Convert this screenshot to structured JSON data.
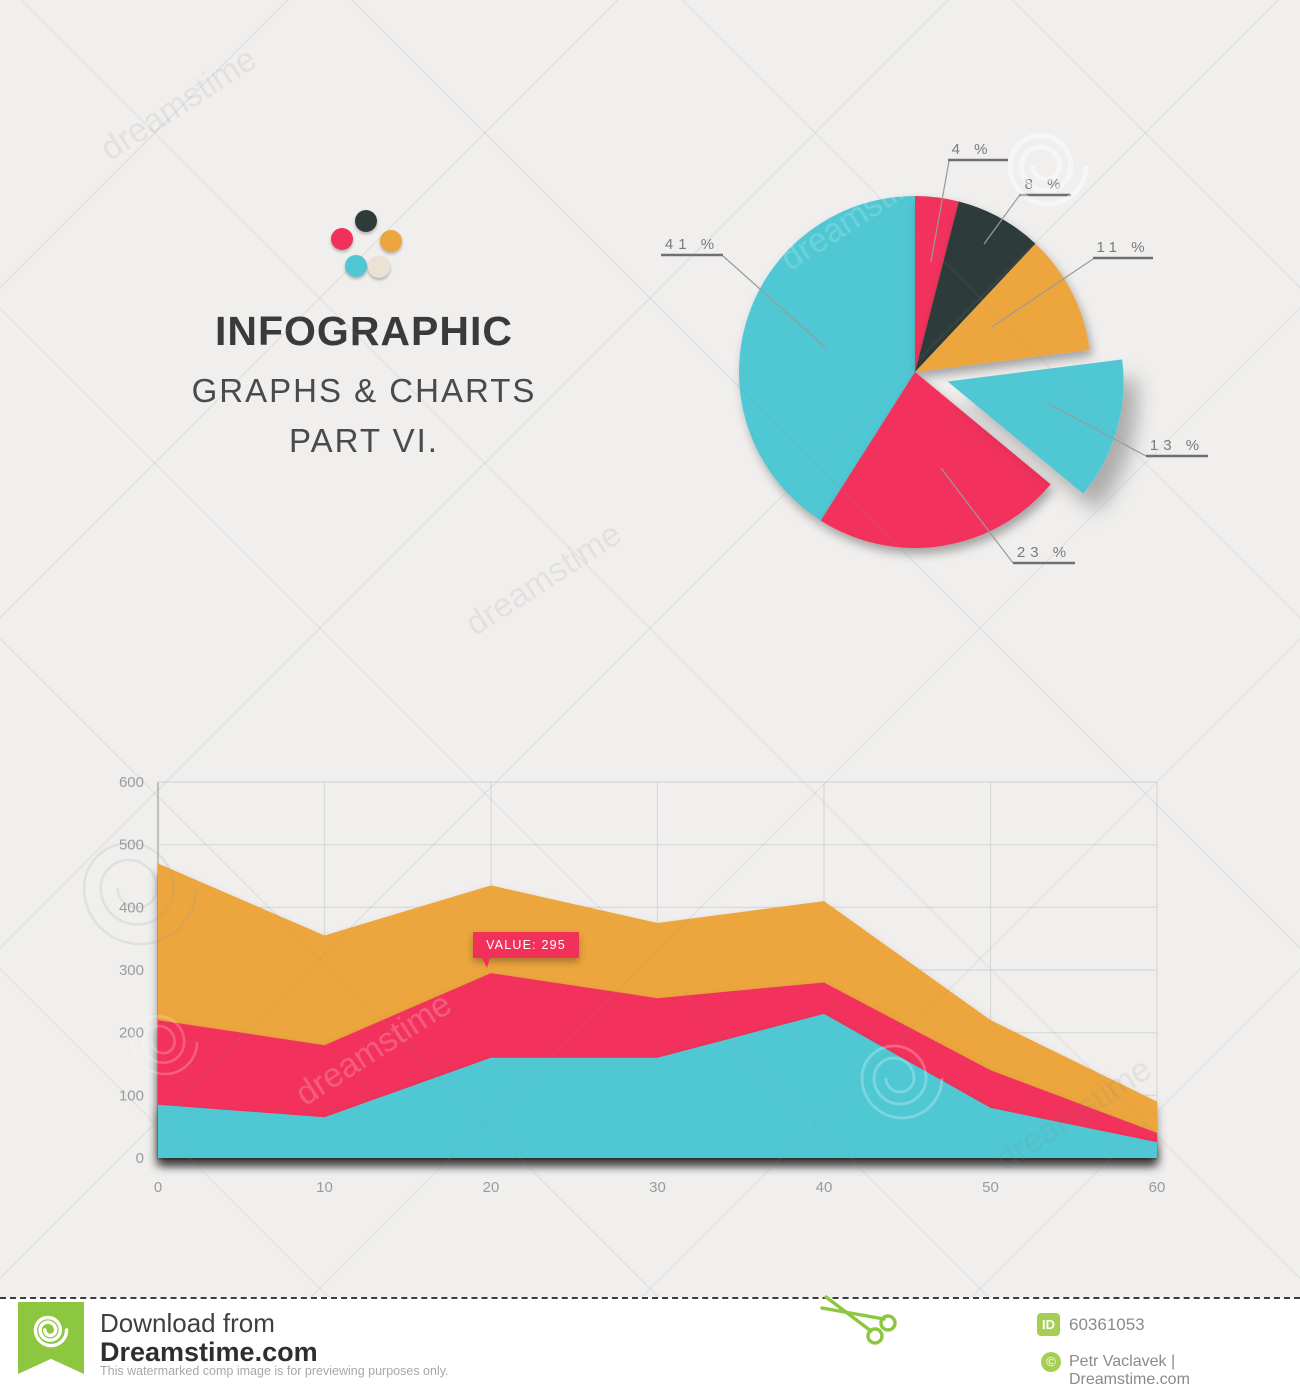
{
  "palette": {
    "teal": "#4fc8d4",
    "pink": "#f2315b",
    "orange": "#eca63d",
    "dark": "#2e3b3a",
    "cream": "#ece1d4",
    "green": "#8dc63f",
    "green_light": "#a6ce53",
    "background": "#f0efee",
    "grid": "#d8d8d7",
    "axis": "#c2c2c1",
    "label_gray": "#7a7a7a",
    "tick_gray": "#9b9b9b"
  },
  "brand": {
    "title": "INFOGRAPHIC",
    "subtitle": "GRAPHS & CHARTS",
    "part": "PART VI.",
    "dots": [
      "dark",
      "pink",
      "orange",
      "teal",
      "cream"
    ]
  },
  "chart_data": [
    {
      "type": "pie",
      "title": "",
      "labels": [
        "4 %",
        "8 %",
        "11 %",
        "13 %",
        "23 %",
        "41 %"
      ],
      "values": [
        4,
        8,
        11,
        13,
        23,
        41
      ],
      "colors": [
        "pink",
        "dark",
        "orange",
        "teal",
        "pink",
        "teal"
      ],
      "exploded_index": 3,
      "start_angle_deg": 0,
      "direction": "clockwise",
      "legend": "none"
    },
    {
      "type": "area",
      "title": "",
      "xlabel": "",
      "ylabel": "",
      "x": [
        0,
        10,
        20,
        30,
        40,
        50,
        60
      ],
      "xticks": [
        "0",
        "10",
        "20",
        "30",
        "40",
        "50",
        "60"
      ],
      "yticks": [
        "0",
        "100",
        "200",
        "300",
        "400",
        "500",
        "600"
      ],
      "ylim": [
        0,
        600
      ],
      "grid": true,
      "series": [
        {
          "name": "orange",
          "color": "orange",
          "values": [
            470,
            355,
            435,
            375,
            410,
            220,
            90
          ]
        },
        {
          "name": "pink",
          "color": "pink",
          "values": [
            220,
            180,
            295,
            255,
            280,
            140,
            40
          ]
        },
        {
          "name": "teal",
          "color": "teal",
          "values": [
            85,
            65,
            160,
            160,
            230,
            80,
            25
          ]
        }
      ],
      "annotation": {
        "text": "VALUE: 295",
        "x": 20,
        "series": "pink",
        "value": 295
      }
    }
  ],
  "watermark": {
    "text": "dreamstime"
  },
  "footer": {
    "download_from": "Download from",
    "site": "Dreamstime.com",
    "disclaimer": "This watermarked comp image is for previewing purposes only.",
    "id_label": "ID",
    "image_id": "60361053",
    "copyright_symbol": "©",
    "credit": "Petr Vaclavek | Dreamstime.com"
  }
}
